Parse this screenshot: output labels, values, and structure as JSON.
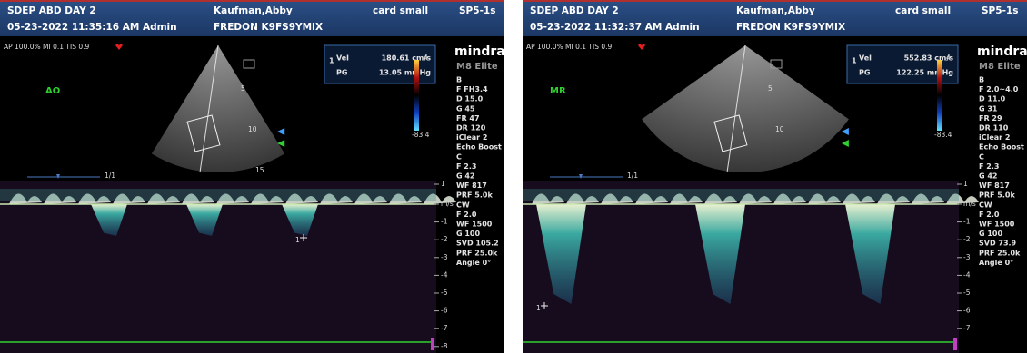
{
  "panels": [
    {
      "header": {
        "exam": "SDEP ABD DAY 2",
        "patient": "Kaufman,Abby",
        "preset": "card small",
        "probe": "SP5-1s",
        "datetime": "05-23-2022 11:35:16 AM Admin",
        "id": "FREDON K9FS9YMIX"
      },
      "status": "AP 100.0% MI 0.1 TIS 0.9",
      "brand": "mindray",
      "model": "M8 Elite",
      "label": "AO",
      "measurement": {
        "marker": "1",
        "vel_label": "Vel",
        "vel_value": "180.61 cm/s",
        "pg_label": "PG",
        "pg_value": "13.05 mmHg"
      },
      "colorbar": {
        "top": "4",
        "bottom": "-83.4"
      },
      "depth_labels": [
        "5",
        "10",
        "15"
      ],
      "params": [
        "B",
        "F FH3.4",
        "D 15.0",
        "G 45",
        "FR 47",
        "DR 120",
        "iClear 2",
        "Echo Boost",
        "C",
        "F 2.3",
        "G 42",
        "WF 817",
        "PRF 5.0k",
        "CW",
        "F 2.0",
        "WF 1500",
        "G 100",
        "SVD 105.2",
        "PRF 25.0k",
        "Angle 0°"
      ],
      "timeline": "1/1",
      "cursor": "1",
      "scale": [
        "1",
        "m/s",
        "-1",
        "-2",
        "-3",
        "-4",
        "-5",
        "-6",
        "-7",
        "-8"
      ]
    },
    {
      "header": {
        "exam": "SDEP ABD DAY 2",
        "patient": "Kaufman,Abby",
        "preset": "card small",
        "probe": "SP5-1s",
        "datetime": "05-23-2022 11:32:37 AM Admin",
        "id": "FREDON K9FS9YMIX"
      },
      "status": "AP 100.0% MI 0.1 TIS 0.9",
      "brand": "mindray",
      "model": "M8 Elite",
      "label": "MR",
      "measurement": {
        "marker": "1",
        "vel_label": "Vel",
        "vel_value": "552.83 cm/s",
        "pg_label": "PG",
        "pg_value": "122.25 mmHg"
      },
      "colorbar": {
        "top": "4",
        "bottom": "-83.4"
      },
      "depth_labels": [
        "5",
        "10"
      ],
      "params": [
        "B",
        "F 2.0~4.0",
        "D 11.0",
        "G 31",
        "FR 29",
        "DR 110",
        "iClear 2",
        "Echo Boost",
        "C",
        "F 2.3",
        "G 42",
        "WF 817",
        "PRF 5.0k",
        "CW",
        "F 2.0",
        "WF 1500",
        "G 100",
        "SVD 73.9",
        "PRF 25.0k",
        "Angle 0°"
      ],
      "timeline": "1/1",
      "cursor": "1",
      "scale": [
        "1",
        "m/s",
        "-1",
        "-2",
        "-3",
        "-4",
        "-5",
        "-6",
        "-7"
      ]
    }
  ]
}
